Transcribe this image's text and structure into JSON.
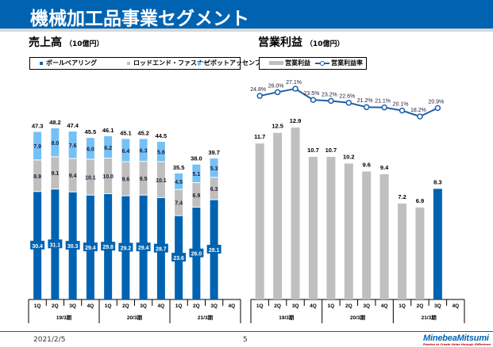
{
  "header": {
    "title": "機械加工品事業セグメント"
  },
  "left": {
    "title": "売上高",
    "unit": "（10億円）",
    "legend": [
      {
        "label": "ボールベアリング",
        "color": "#0063b1"
      },
      {
        "label": "ロッドエンド・ファスナー",
        "color": "#bfbfbf"
      },
      {
        "label": "ピボットアッセンブリー",
        "color": "#75c0f5"
      }
    ]
  },
  "right": {
    "title": "営業利益",
    "unit": "（10億円）",
    "legend": [
      {
        "label": "営業利益",
        "color": "#bfbfbf"
      },
      {
        "label": "営業利益率",
        "color": "#1f5fa8"
      }
    ]
  },
  "footer": {
    "date": "2021/2/5",
    "page": "5",
    "logo": "MinebeaMitsumi",
    "tagline": "Passion to Create Value through Difference"
  },
  "chart_data": [
    {
      "type": "bar",
      "stacked": true,
      "title": "売上高（10億円）",
      "categories": [
        "1Q",
        "2Q",
        "3Q",
        "4Q",
        "1Q",
        "2Q",
        "3Q",
        "4Q",
        "1Q",
        "2Q",
        "3Q",
        "4Q"
      ],
      "groups": [
        {
          "label": "19/3期",
          "span": 4
        },
        {
          "label": "20/3期",
          "span": 4
        },
        {
          "label": "21/3期",
          "span": 4
        }
      ],
      "series": [
        {
          "name": "ボールベアリング",
          "color": "#0063b1",
          "values": [
            30.4,
            31.1,
            30.3,
            29.4,
            29.8,
            29.2,
            29.4,
            28.7,
            23.6,
            26.0,
            28.1,
            null
          ]
        },
        {
          "name": "ロッドエンド・ファスナー",
          "color": "#bfbfbf",
          "values": [
            8.9,
            9.1,
            9.4,
            10.1,
            10.0,
            9.6,
            9.5,
            10.1,
            7.4,
            6.9,
            6.3,
            null
          ]
        },
        {
          "name": "ピボットアッセンブリー",
          "color": "#75c0f5",
          "values": [
            7.9,
            8.0,
            7.6,
            6.0,
            6.2,
            6.4,
            6.3,
            5.6,
            4.5,
            5.1,
            5.3,
            null
          ]
        }
      ],
      "totals": [
        "47.3",
        "48.2",
        "47.4",
        "45.5",
        "46.1",
        "45.1",
        "45.2",
        "44.5",
        "35.5",
        "38.0",
        "39.7",
        null
      ],
      "ylim": [
        0,
        48.2
      ],
      "legend_position": "top",
      "grid": false
    },
    {
      "type": "bar+line",
      "title": "営業利益（10億円）",
      "categories": [
        "1Q",
        "2Q",
        "3Q",
        "4Q",
        "1Q",
        "2Q",
        "3Q",
        "4Q",
        "1Q",
        "2Q",
        "3Q",
        "4Q"
      ],
      "groups": [
        {
          "label": "19/3期",
          "span": 4
        },
        {
          "label": "20/3期",
          "span": 4
        },
        {
          "label": "21/3期",
          "span": 4
        }
      ],
      "series": [
        {
          "name": "営業利益",
          "type": "bar",
          "color": "#bfbfbf",
          "highlight_color": "#0063b1",
          "highlight_index": 10,
          "values": [
            11.7,
            12.5,
            12.9,
            10.7,
            10.7,
            10.2,
            9.6,
            9.4,
            7.2,
            6.9,
            8.3,
            null
          ],
          "labels": [
            "11.7",
            "12.5",
            "12.9",
            "10.7",
            "10.7",
            "10.2",
            "9.6",
            "9.4",
            "7.2",
            "6.9",
            "8.3",
            null
          ]
        },
        {
          "name": "営業利益率",
          "type": "line",
          "color": "#1f5fa8",
          "values": [
            24.8,
            26.0,
            27.1,
            23.5,
            23.2,
            22.6,
            21.2,
            21.1,
            20.1,
            18.2,
            20.9,
            null
          ],
          "labels": [
            "24.8%",
            "26.0%",
            "27.1%",
            "23.5%",
            "23.2%",
            "22.6%",
            "21.2%",
            "21.1%",
            "20.1%",
            "18.2%",
            "20.9%",
            null
          ]
        }
      ],
      "ylim": [
        0,
        12.9
      ],
      "legend_position": "top",
      "grid": false
    }
  ]
}
